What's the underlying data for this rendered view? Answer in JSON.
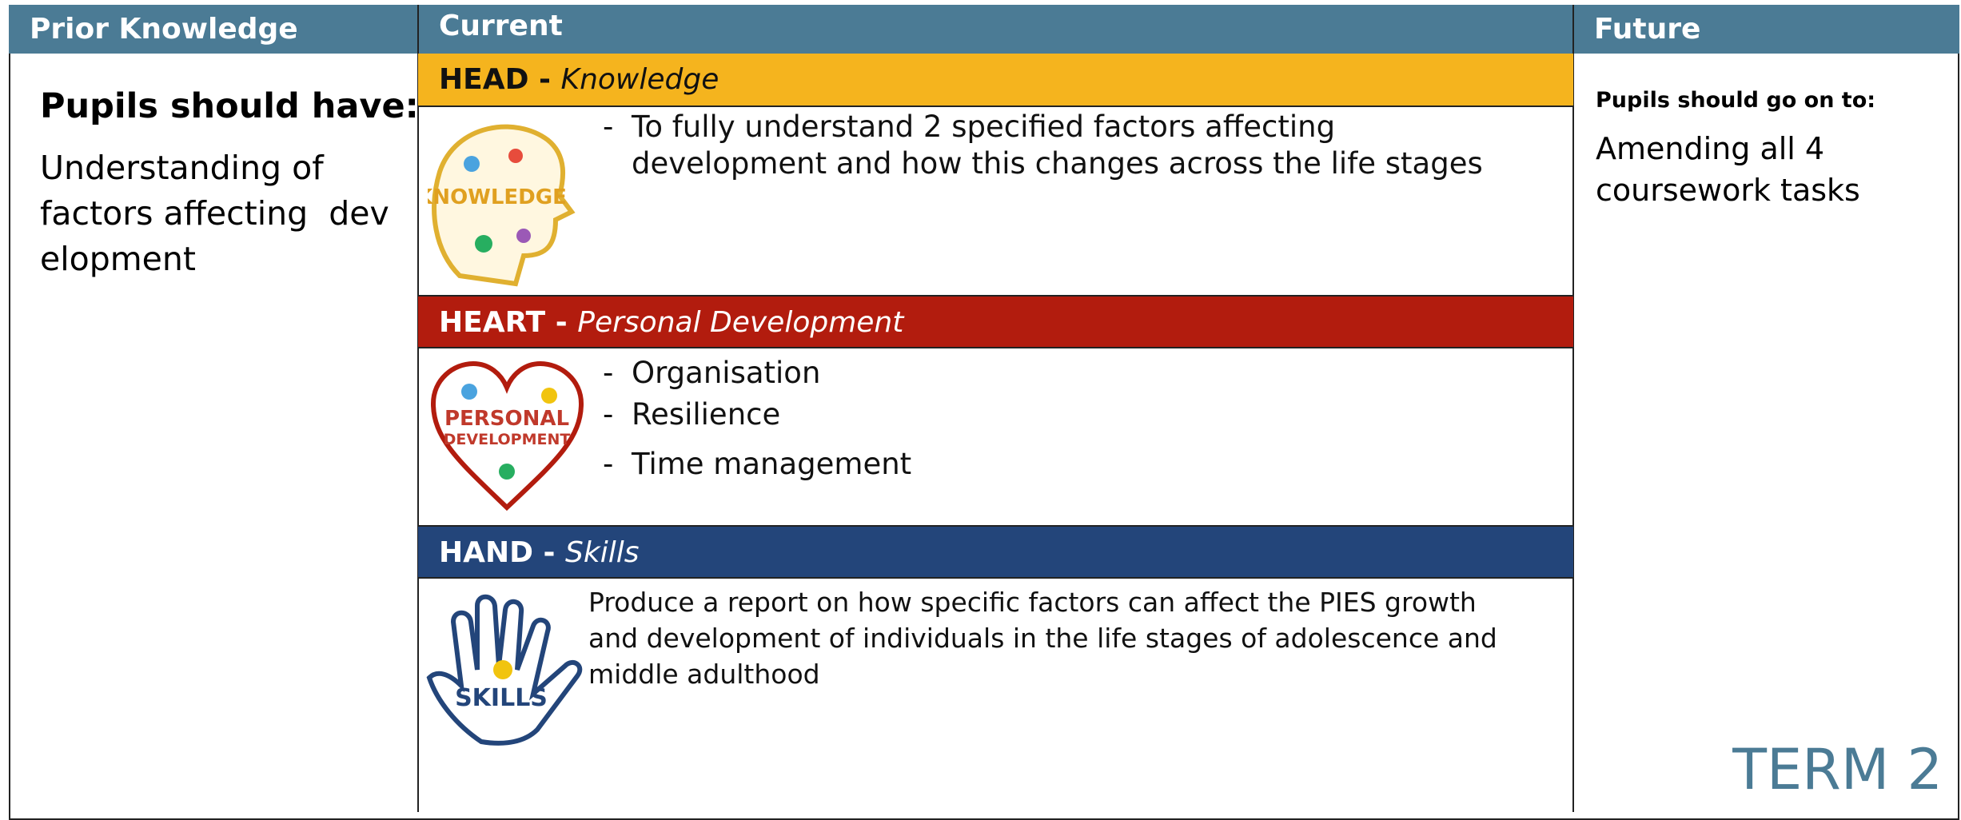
{
  "header": {
    "columns": [
      "Prior Knowledge",
      "Current",
      "Future"
    ]
  },
  "prior": {
    "heading": "Pupils should have:",
    "lines": [
      "Understanding of",
      "factors affecting  dev",
      "elopment"
    ]
  },
  "current": {
    "sections": [
      {
        "title": "HEAD - ",
        "subtitle": "Knowledge",
        "bullets": [
          "To fully understand 2 specified factors affecting development and how this changes across the life stages"
        ]
      },
      {
        "title": "HEART - ",
        "subtitle": "Personal Development",
        "bullets": [
          "Organisation",
          "Resilience",
          "Time management"
        ]
      },
      {
        "title": "HAND - ",
        "subtitle": "Skills",
        "text": "Produce a report on how specific factors can affect the PIES growth and development of individuals in the life stages of adolescence and middle adulthood"
      }
    ]
  },
  "future": {
    "heading": "Pupils should go on to:",
    "text": "Amending all 4 coursework tasks"
  },
  "footer": {
    "term": "TERM 2"
  }
}
